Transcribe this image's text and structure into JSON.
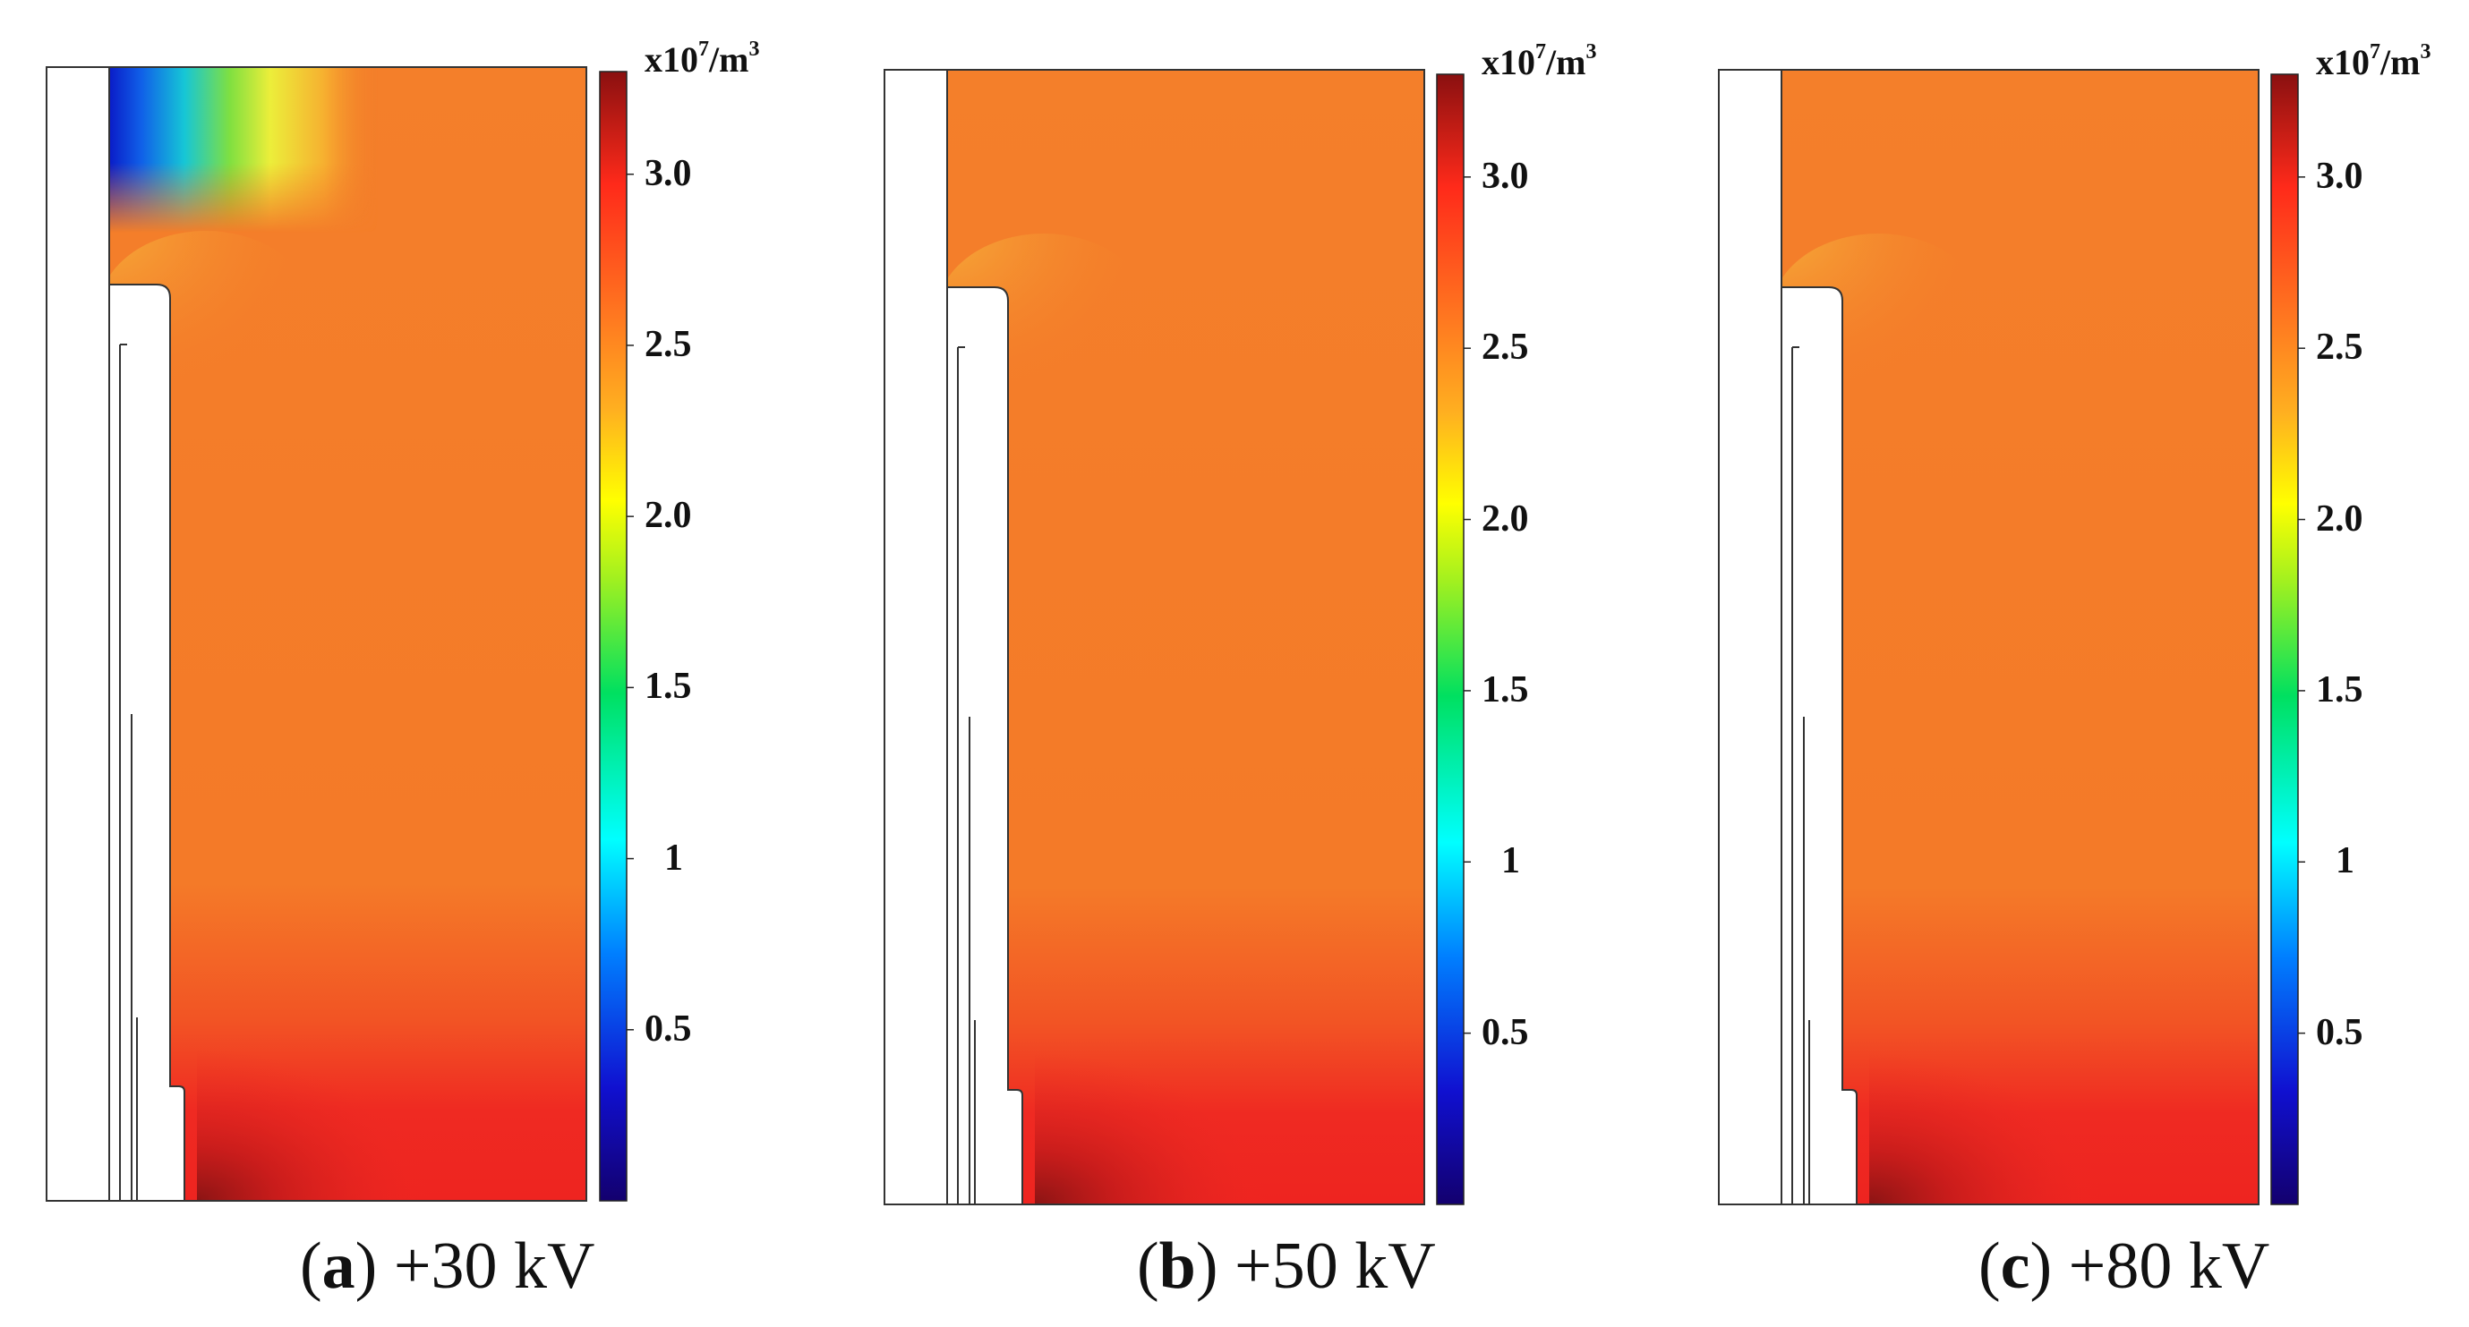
{
  "panels": [
    {
      "id": "a",
      "letter": "a",
      "voltage": "+30 kV"
    },
    {
      "id": "b",
      "letter": "b",
      "voltage": "+50 kV"
    },
    {
      "id": "c",
      "letter": "c",
      "voltage": "+80 kV"
    }
  ],
  "colorbar": {
    "unit_base": "x10",
    "unit_exp": "7",
    "unit_tail": "/m",
    "unit_tail_exp": "3",
    "ticks": [
      "3.0",
      "2.5",
      "2.0",
      "1.5",
      "1",
      "0.5"
    ],
    "tick_values": [
      3.0,
      2.5,
      2.0,
      1.5,
      1.0,
      0.5
    ],
    "min": 0,
    "max": 3.3,
    "colors": [
      "#13006e",
      "#1010d0",
      "#0080ff",
      "#00ffff",
      "#00e060",
      "#a0f020",
      "#ffff00",
      "#ffb020",
      "#ff7a20",
      "#ff2a1a",
      "#8a1010"
    ]
  },
  "field_colors": {
    "bulk": "#f47f2a",
    "lower": "#f25424",
    "bottom": "#ef2a22",
    "hot": "#8b1414",
    "low": "#0a1cc8",
    "mid": "#16c6d6",
    "high": "#ecee3a"
  }
}
